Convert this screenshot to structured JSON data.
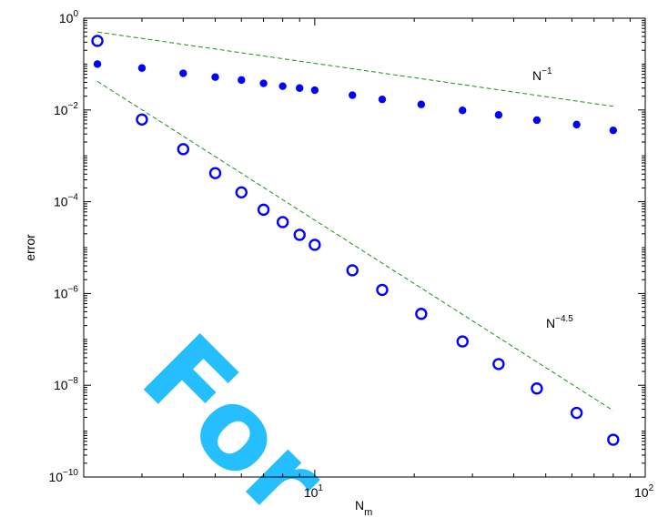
{
  "chart_data": {
    "type": "scatter",
    "title": "",
    "xlabel": "N",
    "xlabel_subscript": "m",
    "ylabel": "error",
    "xscale": "log",
    "yscale": "log",
    "xlim": [
      2,
      100
    ],
    "ylim": [
      1e-10,
      1
    ],
    "x_ticks": [
      {
        "value": 10,
        "base": "10",
        "exp": "1"
      },
      {
        "value": 100,
        "base": "10",
        "exp": "2"
      }
    ],
    "y_ticks": [
      {
        "value": 1,
        "base": "10",
        "exp": "0"
      },
      {
        "value": 0.01,
        "base": "10",
        "exp": "-2"
      },
      {
        "value": 0.0001,
        "base": "10",
        "exp": "-4"
      },
      {
        "value": 1e-06,
        "base": "10",
        "exp": "-6"
      },
      {
        "value": 1e-08,
        "base": "10",
        "exp": "-8"
      },
      {
        "value": 1e-10,
        "base": "10",
        "exp": "-10"
      }
    ],
    "grid": false,
    "series": [
      {
        "marker": "filled-dot",
        "color": "#0000ff",
        "x": [
          2.2,
          3,
          4,
          5,
          6,
          7,
          8,
          9,
          10,
          13,
          16,
          21,
          28,
          36,
          47,
          62,
          80
        ],
        "y": [
          0.1,
          0.082,
          0.063,
          0.052,
          0.045,
          0.038,
          0.033,
          0.03,
          0.027,
          0.021,
          0.017,
          0.0132,
          0.0098,
          0.0078,
          0.006,
          0.0048,
          0.0036
        ]
      },
      {
        "marker": "open-circle",
        "color": "#0000ff",
        "x": [
          2.2,
          3,
          4,
          5,
          6,
          7,
          8,
          9,
          10,
          13,
          16,
          21,
          28,
          36,
          47,
          62,
          80
        ],
        "y": [
          0.32,
          0.0062,
          0.0014,
          0.00042,
          0.00016,
          6.7e-05,
          3.6e-05,
          1.9e-05,
          1.15e-05,
          3.2e-06,
          1.2e-06,
          3.6e-07,
          9e-08,
          2.9e-08,
          8.5e-09,
          2.5e-09,
          6.5e-10
        ]
      }
    ],
    "reference_lines": [
      {
        "base": "N",
        "exp": "-1",
        "color": "#228b22",
        "style": "dashed",
        "x": [
          2.2,
          80
        ],
        "y": [
          0.5,
          0.012
        ]
      },
      {
        "base": "N",
        "exp": "-4.5",
        "color": "#228b22",
        "style": "dashed",
        "x": [
          2.2,
          80
        ],
        "y": [
          0.042,
          2.8e-09
        ]
      }
    ],
    "watermark": "For"
  }
}
